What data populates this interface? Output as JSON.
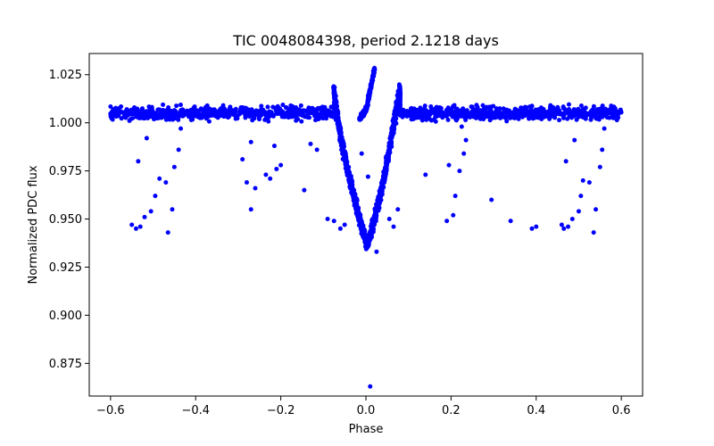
{
  "chart_data": {
    "type": "scatter",
    "title": "TIC 0048084398, period 2.1218 days",
    "xlabel": "Phase",
    "ylabel": "Normalized PDC flux",
    "xlim": [
      -0.65,
      0.65
    ],
    "ylim": [
      0.858,
      1.036
    ],
    "xticks": [
      -0.6,
      -0.4,
      -0.2,
      0.0,
      0.2,
      0.4,
      0.6
    ],
    "xtick_labels": [
      "−0.6",
      "−0.4",
      "−0.2",
      "0.0",
      "0.2",
      "0.4",
      "0.6"
    ],
    "yticks": [
      0.875,
      0.9,
      0.925,
      0.95,
      0.975,
      1.0,
      1.025
    ],
    "ytick_labels": [
      "0.875",
      "0.900",
      "0.925",
      "0.950",
      "0.975",
      "1.000",
      "1.025"
    ],
    "grid": false,
    "series": [
      {
        "name": "PDC flux",
        "color": "#0000ff",
        "baseline": {
          "x_range": [
            -0.6,
            0.6
          ],
          "level": 1.005,
          "spread": 0.005,
          "excluded_phase": [
            -0.07,
            0.08
          ]
        },
        "eclipse": {
          "bottom": [
            0.001,
            0.937
          ],
          "ingress_start": [
            -0.09,
            1.008
          ],
          "egress_end": [
            0.085,
            1.008
          ],
          "left_bump_peak": [
            -0.075,
            1.018
          ],
          "right_bump_peak": [
            0.08,
            1.018
          ],
          "rising_arm": [
            [
              -0.015,
              1.002
            ],
            [
              0.002,
              1.008
            ],
            [
              0.02,
              1.028
            ]
          ]
        },
        "outliers": [
          [
            -0.55,
            0.947
          ],
          [
            -0.54,
            0.945
          ],
          [
            -0.535,
            0.98
          ],
          [
            -0.53,
            0.946
          ],
          [
            -0.52,
            0.951
          ],
          [
            -0.515,
            0.992
          ],
          [
            -0.505,
            0.954
          ],
          [
            -0.495,
            0.962
          ],
          [
            -0.485,
            0.971
          ],
          [
            -0.47,
            0.969
          ],
          [
            -0.465,
            0.943
          ],
          [
            -0.455,
            0.955
          ],
          [
            -0.45,
            0.977
          ],
          [
            -0.44,
            0.986
          ],
          [
            -0.435,
            0.997
          ],
          [
            -0.29,
            0.981
          ],
          [
            -0.28,
            0.969
          ],
          [
            -0.27,
            0.955
          ],
          [
            -0.27,
            0.99
          ],
          [
            -0.26,
            0.966
          ],
          [
            -0.235,
            0.973
          ],
          [
            -0.225,
            0.971
          ],
          [
            -0.215,
            0.988
          ],
          [
            -0.21,
            0.976
          ],
          [
            -0.2,
            0.978
          ],
          [
            -0.145,
            0.965
          ],
          [
            -0.13,
            0.989
          ],
          [
            -0.115,
            0.986
          ],
          [
            -0.09,
            0.95
          ],
          [
            -0.075,
            0.949
          ],
          [
            -0.06,
            0.945
          ],
          [
            -0.05,
            0.947
          ],
          [
            -0.01,
            0.984
          ],
          [
            0.005,
            0.972
          ],
          [
            0.01,
            0.863
          ],
          [
            0.025,
            0.933
          ],
          [
            0.04,
            0.967
          ],
          [
            0.055,
            0.95
          ],
          [
            0.065,
            0.946
          ],
          [
            0.075,
            0.955
          ],
          [
            0.14,
            0.973
          ],
          [
            0.19,
            0.949
          ],
          [
            0.195,
            0.978
          ],
          [
            0.205,
            0.952
          ],
          [
            0.21,
            0.962
          ],
          [
            0.22,
            0.975
          ],
          [
            0.225,
            0.998
          ],
          [
            0.23,
            0.984
          ],
          [
            0.235,
            0.991
          ],
          [
            0.295,
            0.96
          ],
          [
            0.34,
            0.949
          ],
          [
            0.39,
            0.945
          ],
          [
            0.4,
            0.946
          ],
          [
            0.46,
            0.947
          ],
          [
            0.465,
            0.945
          ],
          [
            0.47,
            0.98
          ],
          [
            0.475,
            0.946
          ],
          [
            0.485,
            0.95
          ],
          [
            0.49,
            0.991
          ],
          [
            0.5,
            0.954
          ],
          [
            0.505,
            0.962
          ],
          [
            0.51,
            0.97
          ],
          [
            0.525,
            0.969
          ],
          [
            0.535,
            0.943
          ],
          [
            0.54,
            0.955
          ],
          [
            0.55,
            0.977
          ],
          [
            0.555,
            0.986
          ],
          [
            0.56,
            0.997
          ]
        ]
      }
    ]
  }
}
